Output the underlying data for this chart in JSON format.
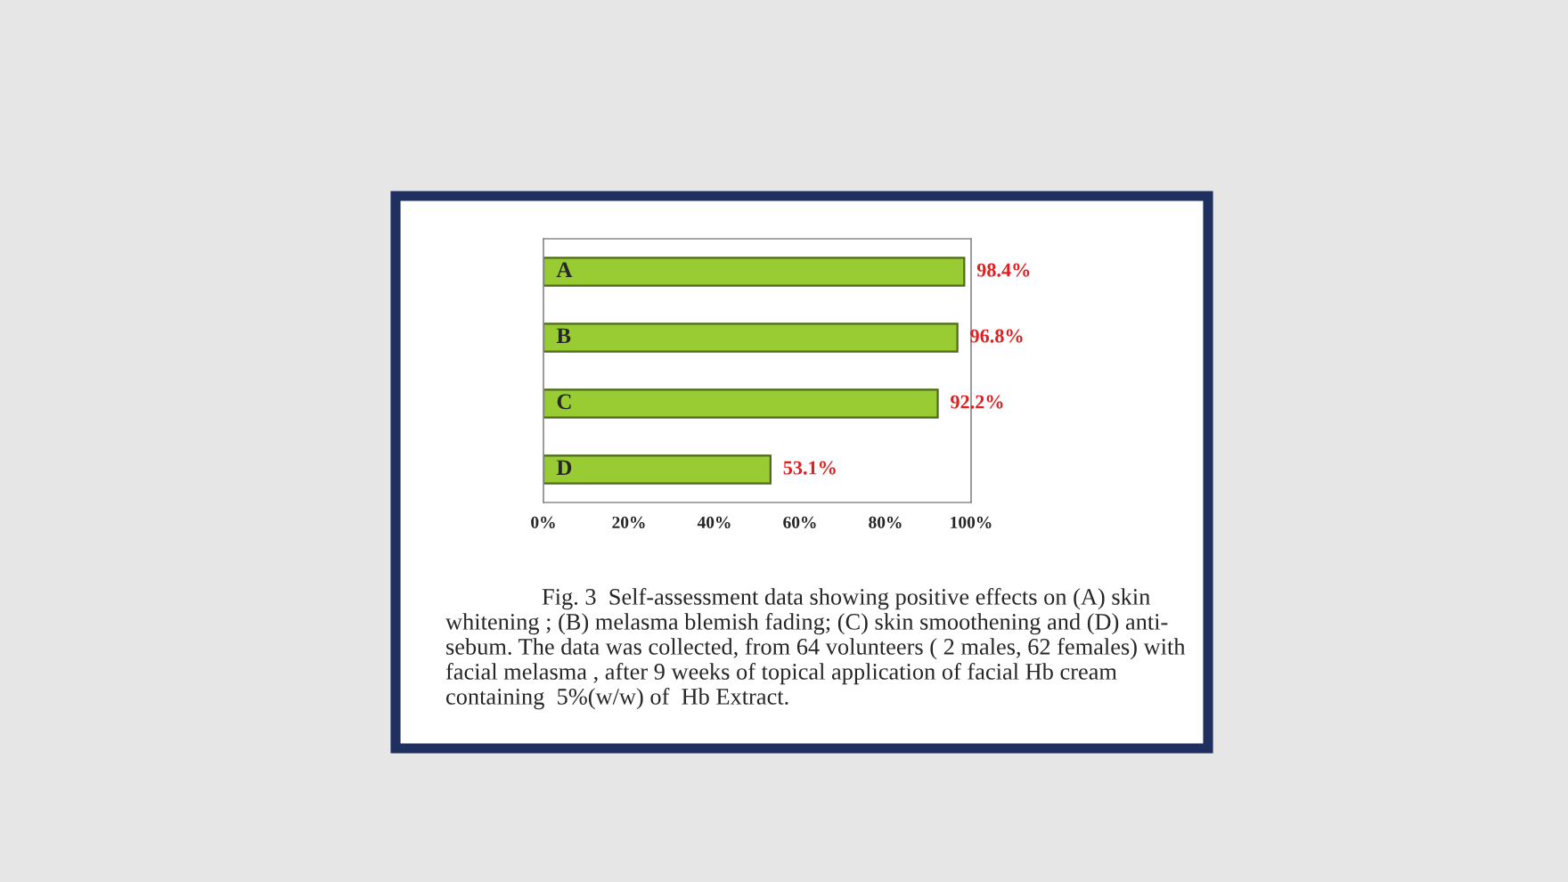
{
  "chart_data": {
    "type": "bar",
    "orientation": "horizontal",
    "categories": [
      "A",
      "B",
      "C",
      "D"
    ],
    "values": [
      98.4,
      96.8,
      92.2,
      53.1
    ],
    "color": "#99cc33",
    "value_labels": [
      "98.4%",
      "96.8%",
      "92.2%",
      "53.1%"
    ],
    "xlim": [
      0,
      100
    ],
    "xticks": [
      {
        "value": 0,
        "label": "0%"
      },
      {
        "value": 20,
        "label": "20%"
      },
      {
        "value": 40,
        "label": "40%"
      },
      {
        "value": 60,
        "label": "60%"
      },
      {
        "value": 80,
        "label": "80%"
      },
      {
        "value": 100,
        "label": "100%"
      }
    ],
    "grid": false,
    "legend": false,
    "annotations": [
      "Fig. 3  Self-assessment data showing positive effects on (A) skin",
      "whitening ; (B) melasma blemish fading; (C) skin smoothening and (D) anti-",
      "sebum. The data was collected, from 64 volunteers ( 2 males, 62 females) with",
      "facial melasma , after 9 weeks of topical application of facial Hb cream",
      "containing  5%(w/w) of  Hb Extract."
    ]
  }
}
